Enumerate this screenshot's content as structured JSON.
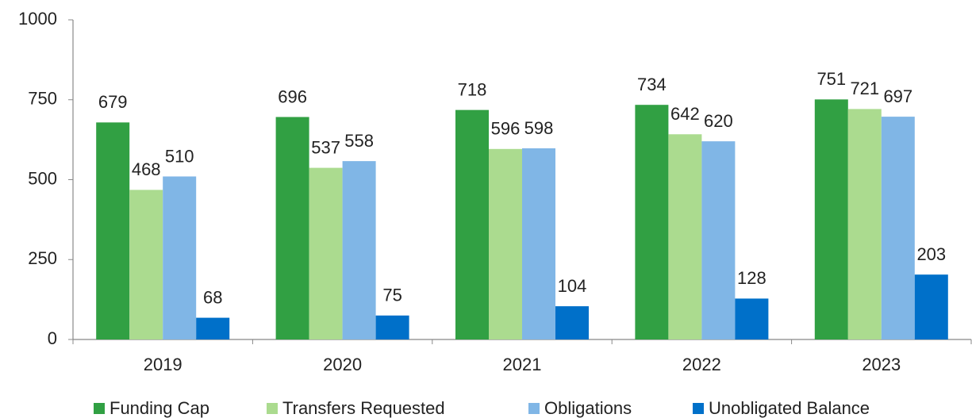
{
  "chart_data": {
    "type": "bar",
    "categories": [
      "2019",
      "2020",
      "2021",
      "2022",
      "2023"
    ],
    "series": [
      {
        "name": "Funding Cap",
        "color": "#31a043",
        "values": [
          679,
          696,
          718,
          734,
          751
        ]
      },
      {
        "name": "Transfers Requested",
        "color": "#abdb8f",
        "values": [
          468,
          537,
          596,
          642,
          721
        ]
      },
      {
        "name": "Obligations",
        "color": "#80b6e6",
        "values": [
          510,
          558,
          598,
          620,
          697
        ]
      },
      {
        "name": "Unobligated Balance",
        "color": "#0070c9",
        "values": [
          68,
          75,
          104,
          128,
          203
        ]
      }
    ],
    "ylim": [
      0,
      1000
    ],
    "yticks": [
      0,
      250,
      500,
      750,
      1000
    ],
    "legend": "bottom"
  }
}
